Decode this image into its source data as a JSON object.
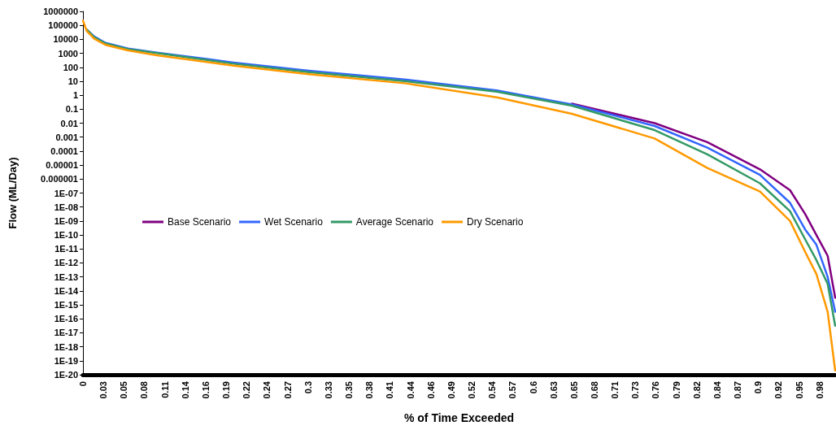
{
  "chart_data": {
    "type": "line",
    "xlabel": "% of Time Exceeded",
    "ylabel": "Flow (ML/Day)",
    "x": [
      0,
      0.005,
      0.015,
      0.03,
      0.06,
      0.1,
      0.2,
      0.3,
      0.43,
      0.55,
      0.65,
      0.76,
      0.83,
      0.9,
      0.94,
      0.96,
      0.975,
      0.99,
      1.0
    ],
    "series": [
      {
        "name": "Base Scenario",
        "color": "#800080",
        "values": [
          null,
          null,
          null,
          null,
          null,
          null,
          null,
          null,
          null,
          null,
          0.25,
          0.01,
          0.00044,
          5e-06,
          1.6e-07,
          3.2e-09,
          1e-10,
          3.2e-12,
          3.2e-15
        ]
      },
      {
        "name": "Wet Scenario",
        "color": "#3366ff",
        "values": [
          null,
          50000.0,
          16000.0,
          5600,
          2200,
          1100,
          220,
          56,
          13,
          2.2,
          0.22,
          0.0063,
          0.00018,
          2e-06,
          2e-08,
          2.5e-10,
          2e-11,
          1e-13,
          3.2e-16
        ]
      },
      {
        "name": "Average Scenario",
        "color": "#339966",
        "values": [
          null,
          50000.0,
          14000.0,
          5000,
          2000,
          1000,
          180,
          45,
          10,
          1.8,
          0.18,
          0.0032,
          5.9e-05,
          5e-07,
          5e-09,
          5e-11,
          1.6e-12,
          3.2e-14,
          3.2e-17
        ]
      },
      {
        "name": "Dry Scenario",
        "color": "#ff9900",
        "values": [
          220000.0,
          40000.0,
          11000.0,
          4000,
          1600,
          700,
          130,
          32,
          7,
          0.7,
          0.047,
          0.0008,
          6.3e-06,
          1.3e-07,
          1e-09,
          6.3e-12,
          1.6e-13,
          3.2e-16,
          2e-20
        ]
      }
    ],
    "log": "y",
    "xlim": [
      0,
      1
    ],
    "xticks": [
      0,
      {
        "value": 0.0272,
        "label": "0.03"
      },
      {
        "value": 0.0544,
        "label": "0.05"
      },
      {
        "value": 0.0816,
        "label": "0.08"
      },
      {
        "value": 0.1088,
        "label": "0.11"
      },
      {
        "value": 0.136,
        "label": "0.14"
      },
      {
        "value": 0.1632,
        "label": "0.16"
      },
      {
        "value": 0.1904,
        "label": "0.19"
      },
      {
        "value": 0.2176,
        "label": "0.22"
      },
      {
        "value": 0.2448,
        "label": "0.24"
      },
      {
        "value": 0.272,
        "label": "0.27"
      },
      {
        "value": 0.2992,
        "label": "0.3"
      },
      {
        "value": 0.3264,
        "label": "0.33"
      },
      {
        "value": 0.3536,
        "label": "0.35"
      },
      {
        "value": 0.3808,
        "label": "0.38"
      },
      {
        "value": 0.408,
        "label": "0.41"
      },
      {
        "value": 0.4352,
        "label": "0.44"
      },
      {
        "value": 0.4624,
        "label": "0.46"
      },
      {
        "value": 0.4896,
        "label": "0.49"
      },
      {
        "value": 0.5168,
        "label": "0.52"
      },
      {
        "value": 0.544,
        "label": "0.54"
      },
      {
        "value": 0.5712,
        "label": "0.57"
      },
      {
        "value": 0.5984,
        "label": "0.6"
      },
      {
        "value": 0.6256,
        "label": "0.63"
      },
      {
        "value": 0.6528,
        "label": "0.65"
      },
      {
        "value": 0.68,
        "label": "0.68"
      },
      {
        "value": 0.7072,
        "label": "0.71"
      },
      {
        "value": 0.7344,
        "label": "0.73"
      },
      {
        "value": 0.7616,
        "label": "0.76"
      },
      {
        "value": 0.7888,
        "label": "0.79"
      },
      {
        "value": 0.816,
        "label": "0.82"
      },
      {
        "value": 0.8432,
        "label": "0.84"
      },
      {
        "value": 0.8704,
        "label": "0.87"
      },
      {
        "value": 0.8976,
        "label": "0.9"
      },
      {
        "value": 0.9248,
        "label": "0.92"
      },
      {
        "value": 0.952,
        "label": "0.95"
      },
      {
        "value": 0.9792,
        "label": "0.98"
      }
    ],
    "ylim": [
      1e-20,
      1000000
    ],
    "yticks": [
      1000000,
      100000,
      10000,
      1000,
      100,
      10,
      1,
      0.1,
      0.01,
      0.001,
      0.0001,
      {
        "value": 1e-05,
        "label": "0.00001"
      },
      {
        "value": 1e-06,
        "label": "0.000001"
      },
      {
        "value": 1e-07,
        "label": "1E-07"
      },
      {
        "value": 1e-08,
        "label": "1E-08"
      },
      {
        "value": 1e-09,
        "label": "1E-09"
      },
      {
        "value": 1e-10,
        "label": "1E-10"
      },
      {
        "value": 1e-11,
        "label": "1E-11"
      },
      {
        "value": 1e-12,
        "label": "1E-12"
      },
      {
        "value": 1e-13,
        "label": "1E-13"
      },
      {
        "value": 1e-14,
        "label": "1E-14"
      },
      {
        "value": 1e-15,
        "label": "1E-15"
      },
      {
        "value": 1e-16,
        "label": "1E-16"
      },
      {
        "value": 1e-17,
        "label": "1E-17"
      },
      {
        "value": 1e-18,
        "label": "1E-18"
      },
      {
        "value": 1e-19,
        "label": "1E-19"
      },
      {
        "value": 1e-20,
        "label": "1E-20"
      }
    ],
    "grid": false,
    "legend": "left",
    "marker": "none",
    "line_style": "solid"
  }
}
